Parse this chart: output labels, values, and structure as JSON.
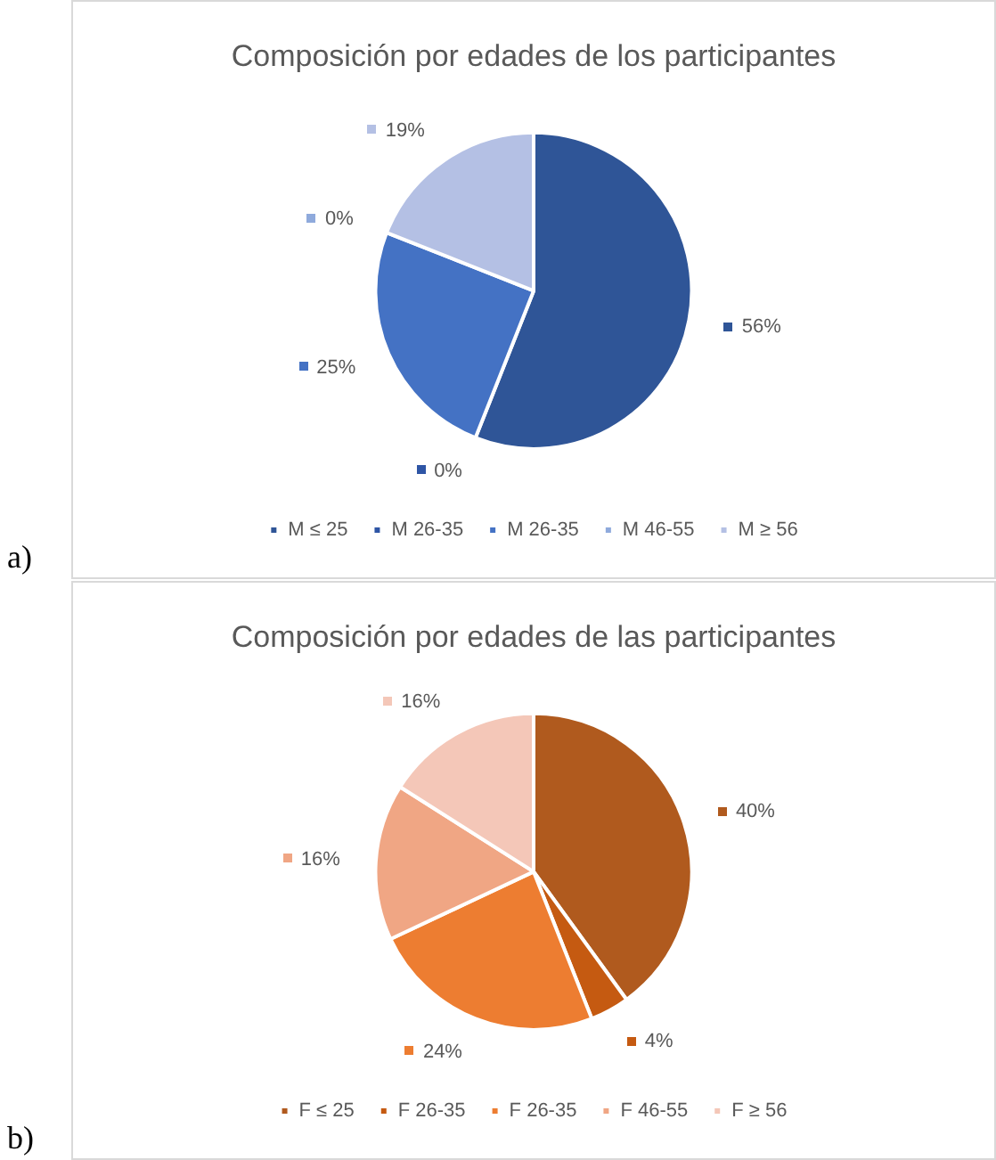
{
  "chart_data": [
    {
      "type": "pie",
      "title": "Composición por edades de los participantes",
      "categories": [
        "M ≤ 25",
        "M 26-35",
        "M 26-35",
        "M 46-55",
        "M ≥ 56"
      ],
      "values": [
        56,
        0,
        25,
        0,
        19
      ],
      "colors": [
        "#2f5597",
        "#2e55a5",
        "#4472c4",
        "#8faadc",
        "#b4c0e4"
      ],
      "value_labels": [
        "56%",
        "0%",
        "25%",
        "0%",
        "19%"
      ],
      "legend": "bottom",
      "annotations": [
        "a)"
      ]
    },
    {
      "type": "pie",
      "title": "Composición por edades de las participantes",
      "categories": [
        "F ≤ 25",
        "F 26-35",
        "F 26-35",
        "F 46-55",
        "F ≥ 56"
      ],
      "values": [
        40,
        4,
        24,
        16,
        16
      ],
      "colors": [
        "#b05a1e",
        "#c55a11",
        "#ed7d31",
        "#f0a684",
        "#f4c7b8"
      ],
      "value_labels": [
        "40%",
        "4%",
        "24%",
        "16%",
        "16%"
      ],
      "legend": "bottom",
      "annotations": [
        "b)"
      ]
    }
  ]
}
